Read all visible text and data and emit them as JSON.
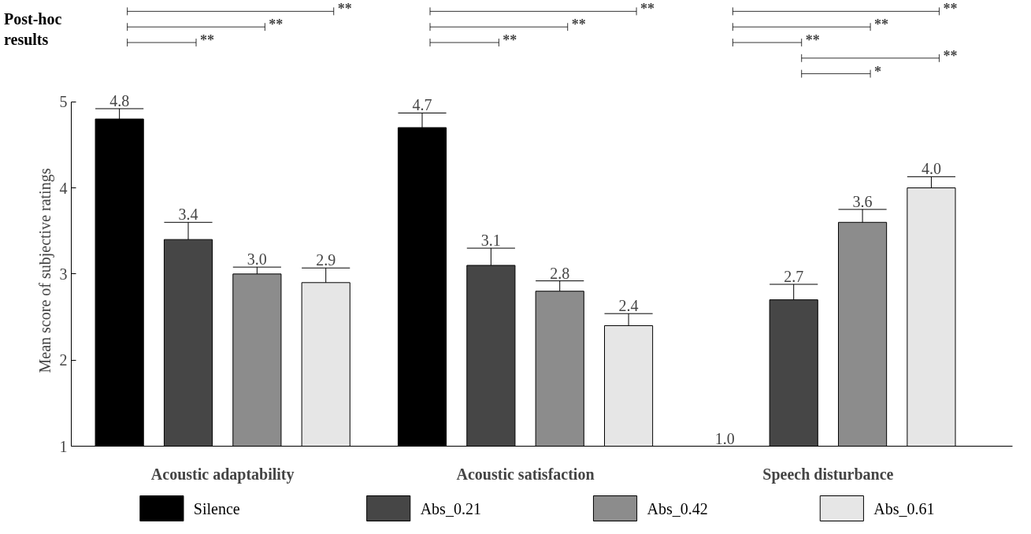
{
  "chart_data": {
    "type": "bar",
    "ylabel": "Mean score of subjective ratings",
    "categories": [
      "Acoustic adaptability",
      "Acoustic satisfaction",
      "Speech disturbance"
    ],
    "series": [
      {
        "name": "Silence",
        "color": "#000000",
        "values": [
          4.8,
          4.7,
          1.0
        ],
        "value_labels": [
          "4.8",
          "4.7",
          "1.0"
        ],
        "errors": [
          [
            4.8,
            4.92
          ],
          [
            4.7,
            4.87
          ],
          null
        ]
      },
      {
        "name": "Abs_0.21",
        "color": "#464646",
        "values": [
          3.4,
          3.1,
          2.7
        ],
        "value_labels": [
          "3.4",
          "3.1",
          "2.7"
        ],
        "errors": [
          [
            3.4,
            3.6
          ],
          [
            3.1,
            3.3
          ],
          [
            2.7,
            2.88
          ]
        ]
      },
      {
        "name": "Abs_0.42",
        "color": "#8c8c8c",
        "values": [
          3.0,
          2.8,
          3.6
        ],
        "value_labels": [
          "3.0",
          "2.8",
          "3.6"
        ],
        "errors": [
          [
            3.0,
            3.08
          ],
          [
            2.8,
            2.92
          ],
          [
            3.6,
            3.75
          ]
        ]
      },
      {
        "name": "Abs_0.61",
        "color": "#e6e6e6",
        "values": [
          2.9,
          2.4,
          4.0
        ],
        "value_labels": [
          "2.9",
          "2.4",
          "4.0"
        ],
        "errors": [
          [
            2.9,
            3.07
          ],
          [
            2.4,
            2.54
          ],
          [
            4.0,
            4.13
          ]
        ]
      }
    ],
    "ylim": [
      1,
      5
    ],
    "yticks": [
      1,
      2,
      3,
      4,
      5
    ],
    "grid": false,
    "legend": "bottom",
    "annotations": [
      "Post-hoc results",
      "**",
      "**",
      "**",
      "**",
      "**",
      "**",
      "**",
      "**",
      "**",
      "**",
      "*"
    ]
  }
}
